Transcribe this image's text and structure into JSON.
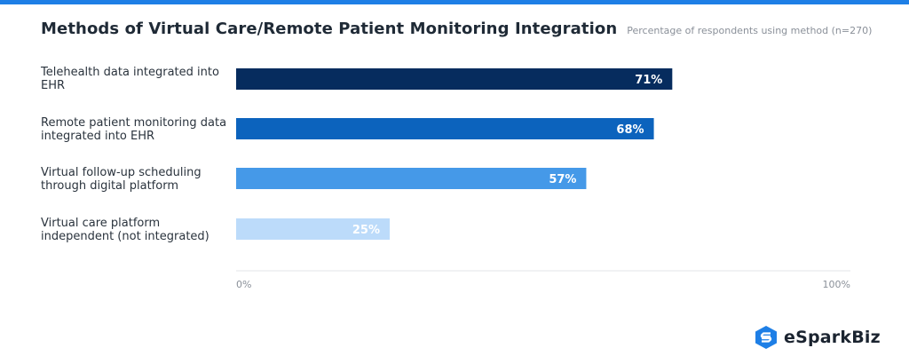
{
  "header": {
    "title": "Methods of Virtual Care/Remote Patient Monitoring Integration",
    "subtitle": "Percentage of respondents using method (n=270)"
  },
  "brand": {
    "name": "eSparkBiz",
    "icon": "esparkbiz-logo-icon",
    "color": "#1e7fe6"
  },
  "chart_data": {
    "type": "bar",
    "orientation": "horizontal",
    "categories": [
      "Telehealth data integrated into EHR",
      "Remote patient monitoring data integrated into EHR",
      "Virtual follow-up scheduling through digital platform",
      "Virtual care platform independent (not integrated)"
    ],
    "values": [
      71,
      68,
      57,
      25
    ],
    "data_labels": [
      "71%",
      "68%",
      "57%",
      "25%"
    ],
    "colors": [
      "#062c5e",
      "#0c63bd",
      "#4599e8",
      "#bcdbfa"
    ],
    "xlim": [
      0,
      100
    ],
    "x_tick_labels": [
      "0%",
      "100%"
    ],
    "grid": false,
    "legend": "none"
  }
}
